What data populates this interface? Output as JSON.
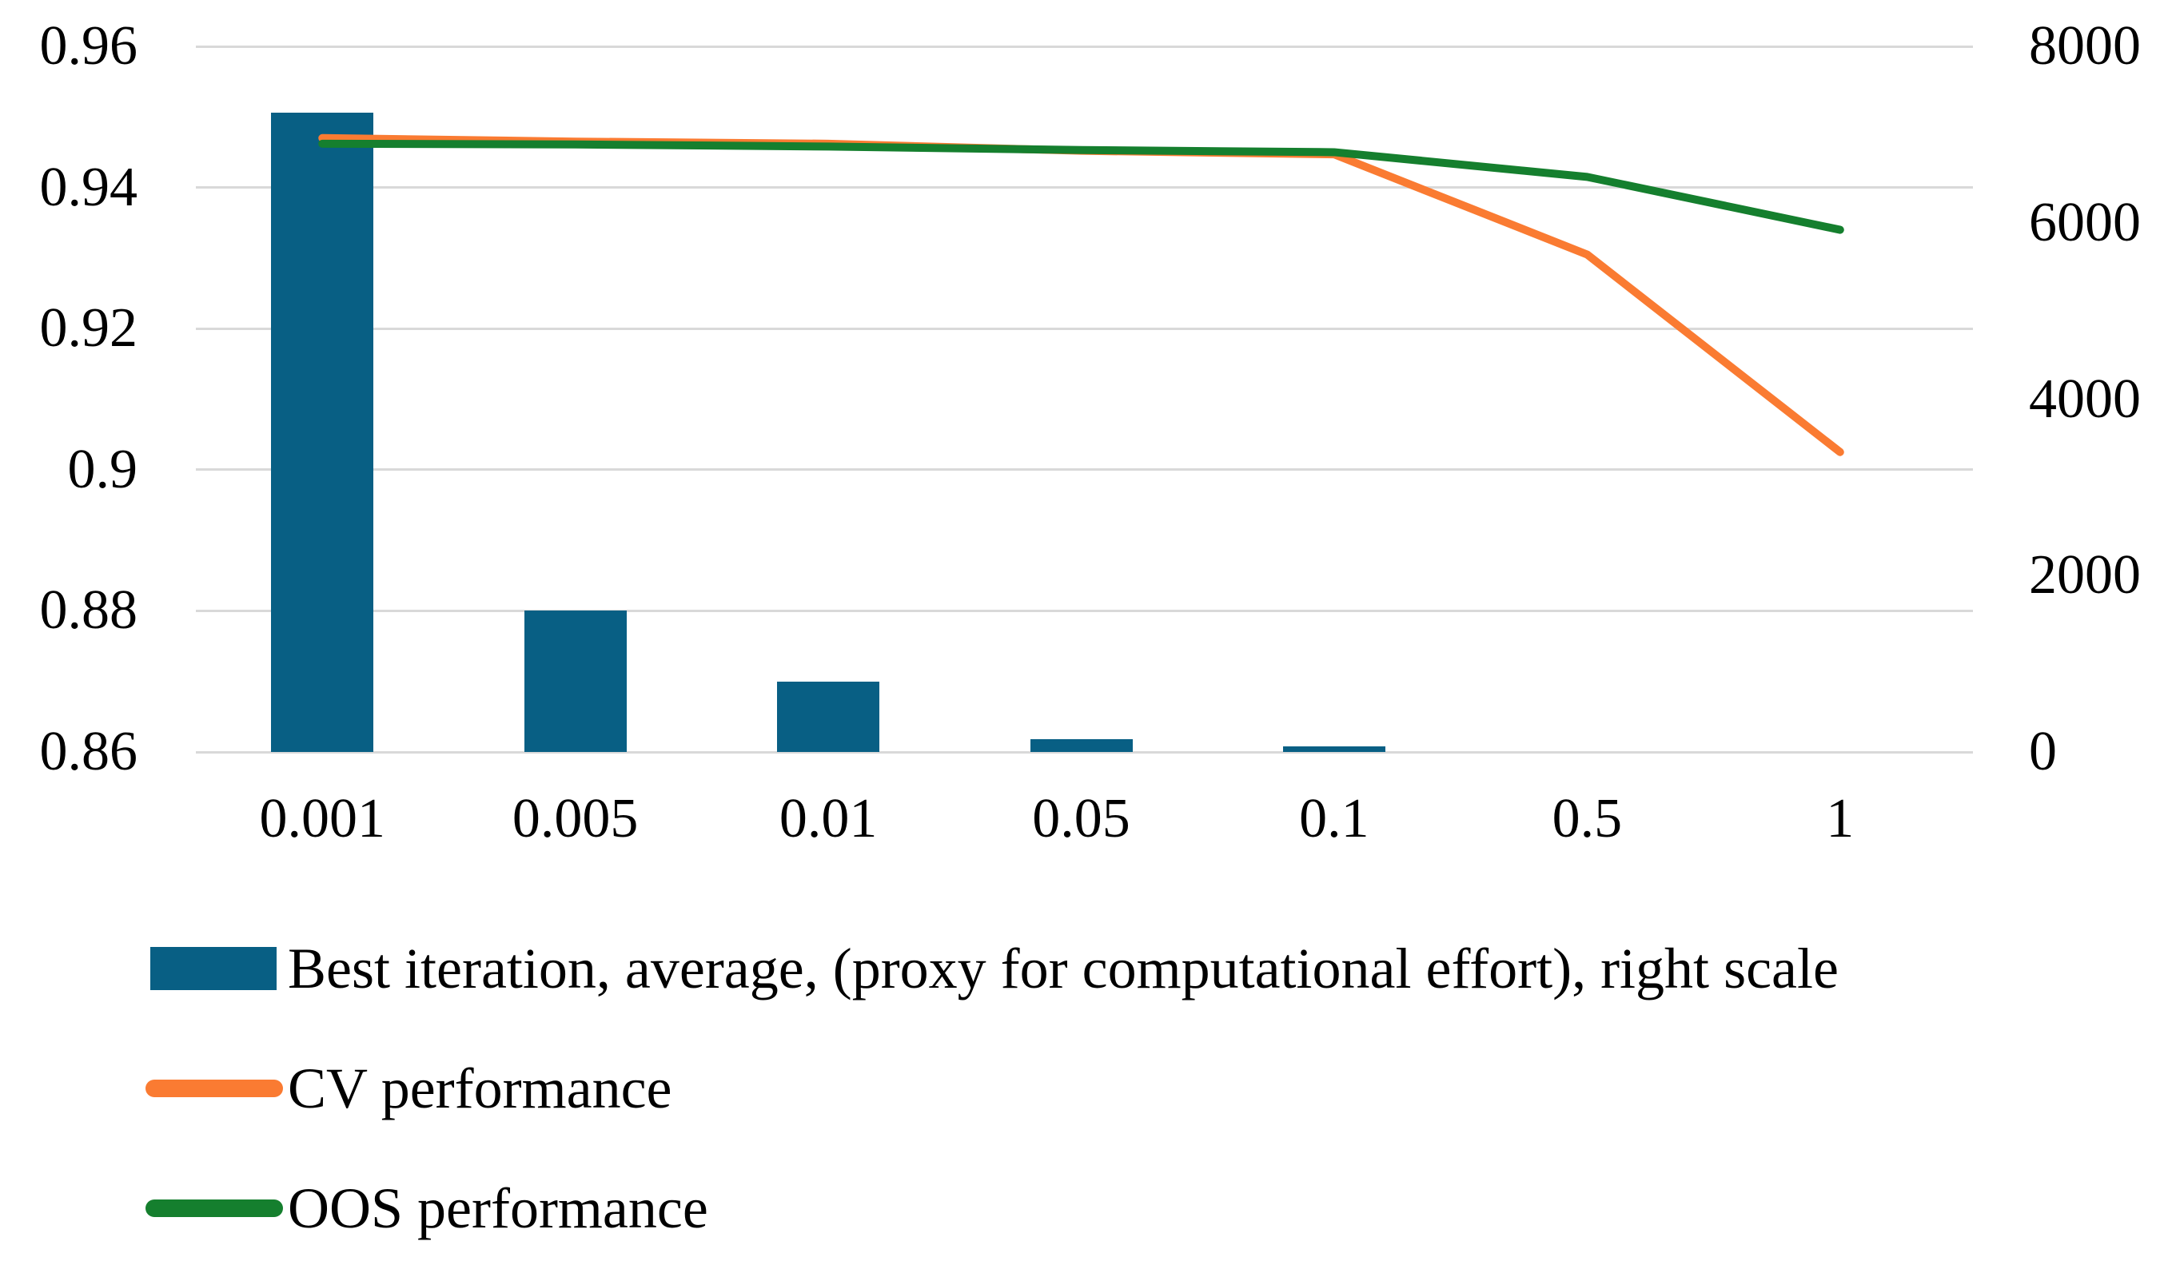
{
  "chart_data": {
    "type": "combo",
    "categories": [
      "0.001",
      "0.005",
      "0.01",
      "0.05",
      "0.1",
      "0.5",
      "1"
    ],
    "series": [
      {
        "name": "Best iteration, average, (proxy for computational effort), right scale",
        "type": "bar",
        "axis": "right",
        "color": "#085f84",
        "values": [
          7250,
          1600,
          800,
          145,
          65,
          0,
          0
        ]
      },
      {
        "name": "CV performance",
        "type": "line",
        "axis": "left",
        "color": "#fa7b32",
        "values": [
          0.947,
          0.9465,
          0.9462,
          0.9452,
          0.9447,
          0.9305,
          0.9025
        ]
      },
      {
        "name": "OOS performance",
        "type": "line",
        "axis": "left",
        "color": "#157f2e",
        "values": [
          0.9462,
          0.9461,
          0.9458,
          0.9453,
          0.945,
          0.9415,
          0.934
        ]
      }
    ],
    "left_axis": {
      "min": 0.86,
      "max": 0.96,
      "ticks": [
        "0.96",
        "0.94",
        "0.92",
        "0.9",
        "0.88",
        "0.86"
      ]
    },
    "right_axis": {
      "min": 0,
      "max": 8000,
      "ticks": [
        "8000",
        "6000",
        "4000",
        "2000",
        "0"
      ]
    },
    "grid": true,
    "legend_position": "bottom",
    "gridline_color": "#d9d9d9"
  },
  "legend": {
    "bar_label": "Best iteration, average, (proxy for computational effort), right scale",
    "cv_label": "CV performance",
    "oos_label": "OOS performance"
  }
}
